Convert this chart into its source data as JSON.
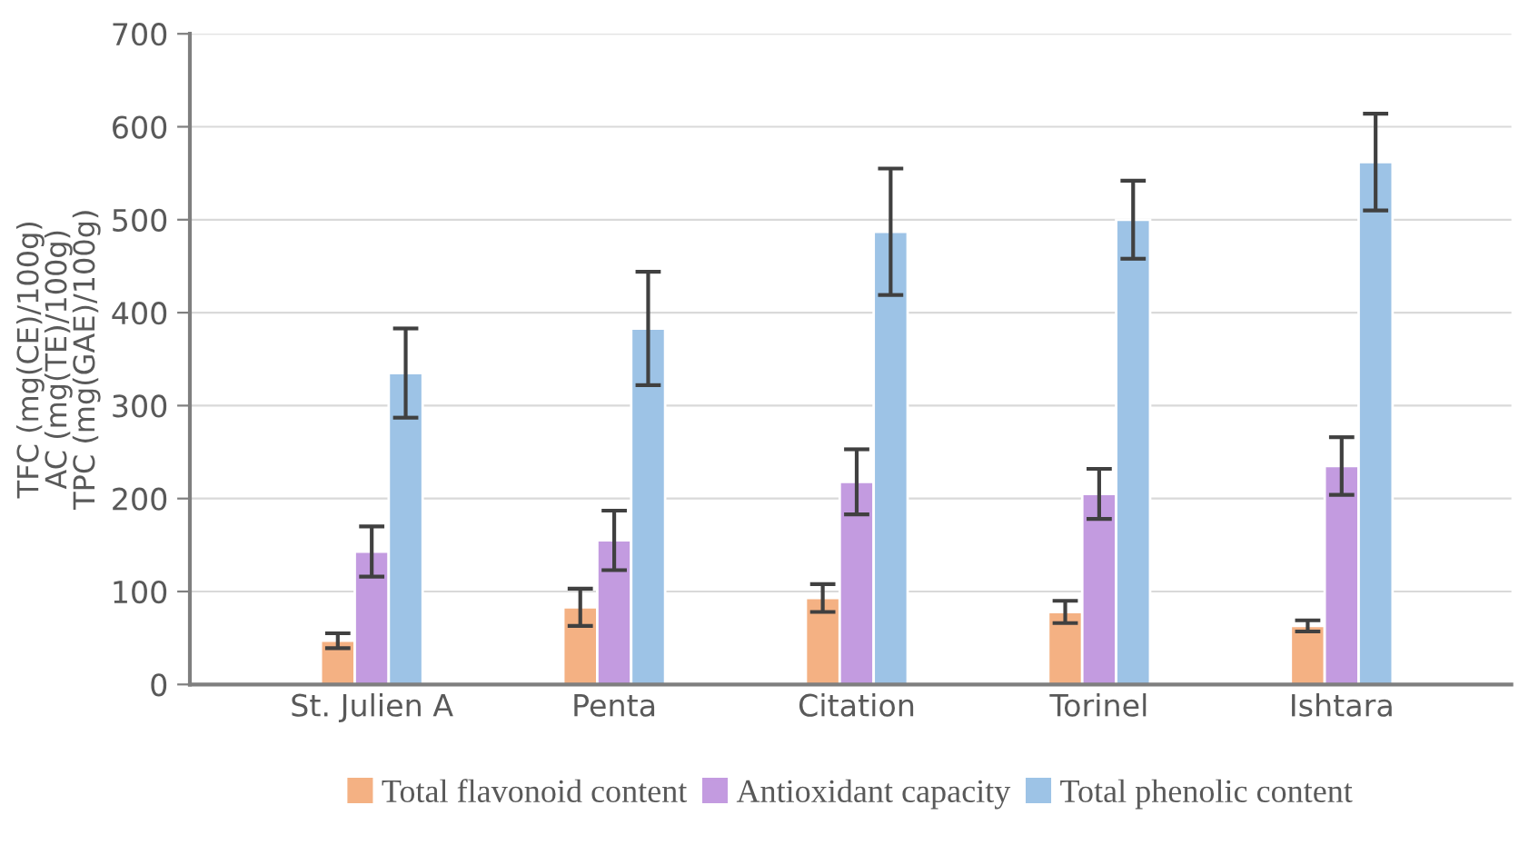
{
  "chart_data": {
    "type": "bar",
    "ylabel": "TFC (mg(CE)/100g)\nAC (mg(TE)/100g)\nTPC (mg(GAE)/100g)",
    "categories": [
      "St. Julien A",
      "Penta",
      "Citation",
      "Torinel",
      "Ishtara"
    ],
    "series": [
      {
        "name": "Total flavonoid content",
        "color": "#f4b183",
        "values": [
          47,
          83,
          93,
          78,
          63
        ],
        "errors": [
          8,
          20,
          15,
          12,
          6
        ]
      },
      {
        "name": "Antioxidant capacity",
        "color": "#c39be0",
        "values": [
          143,
          155,
          218,
          205,
          235
        ],
        "errors": [
          27,
          32,
          35,
          27,
          31
        ]
      },
      {
        "name": "Total phenolic content",
        "color": "#9dc3e6",
        "values": [
          335,
          383,
          487,
          500,
          562
        ],
        "errors": [
          48,
          61,
          68,
          42,
          52
        ]
      }
    ],
    "ylim": [
      0,
      700
    ],
    "yticks": [
      0,
      100,
      200,
      300,
      400,
      500,
      600,
      700
    ],
    "grid": "y",
    "legend": "bottom"
  }
}
